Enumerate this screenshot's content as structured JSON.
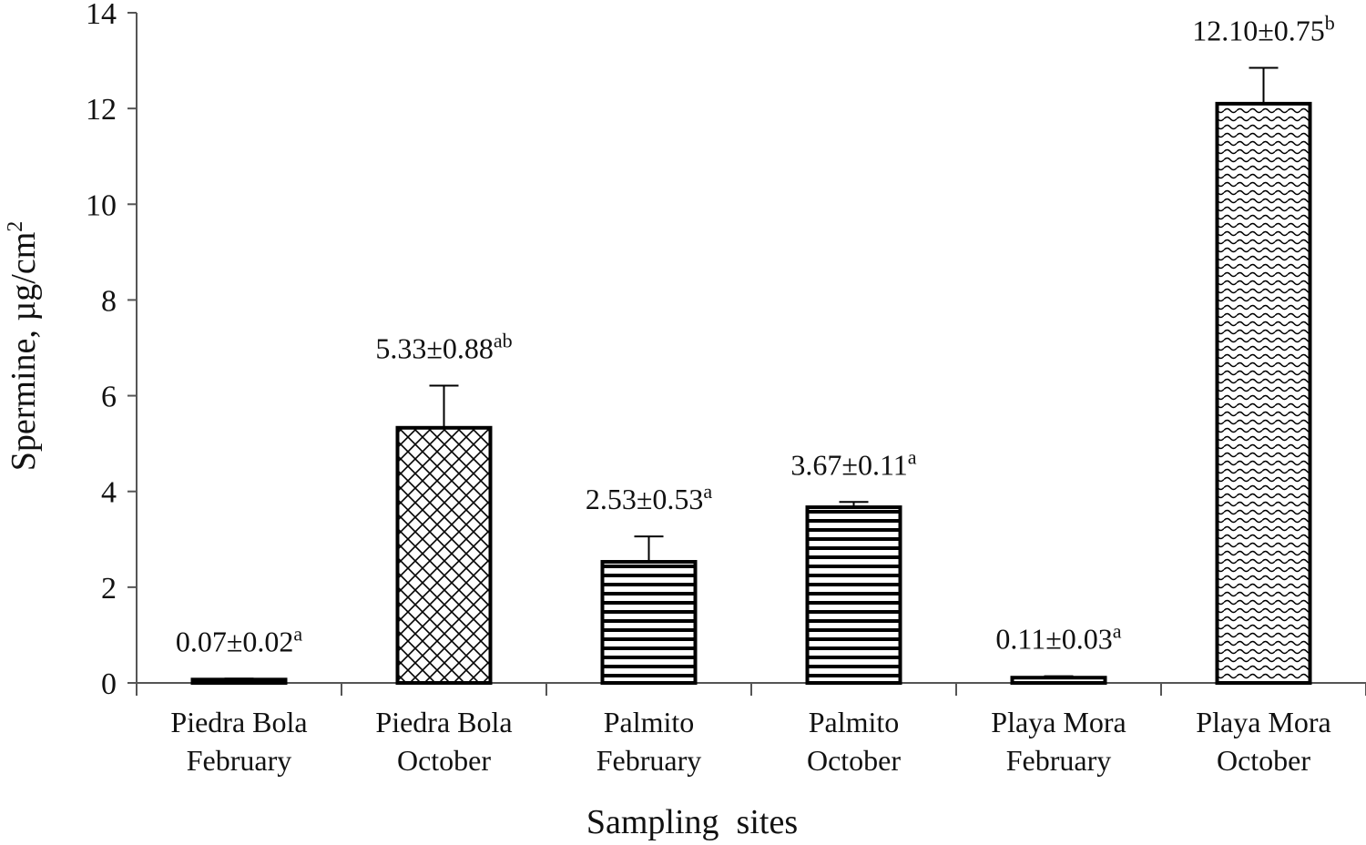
{
  "chart_data": {
    "type": "bar",
    "xlabel": "Sampling  sites",
    "ylabel": "Spermine, µg/cm",
    "ylabel_superscript": "2",
    "ylim": [
      0,
      14
    ],
    "yticks": [
      "0",
      "2",
      "4",
      "6",
      "8",
      "10",
      "12",
      "14"
    ],
    "grid": false,
    "legend": "none",
    "categories": [
      {
        "line1": "Piedra Bola",
        "line2": "February"
      },
      {
        "line1": "Piedra Bola",
        "line2": "October"
      },
      {
        "line1": "Palmito",
        "line2": "February"
      },
      {
        "line1": "Palmito",
        "line2": "October"
      },
      {
        "line1": "Playa Mora",
        "line2": "February"
      },
      {
        "line1": "Playa Mora",
        "line2": "October"
      }
    ],
    "values": [
      0.07,
      5.33,
      2.53,
      3.67,
      0.11,
      12.1
    ],
    "errors": [
      0.02,
      0.88,
      0.53,
      0.11,
      0.03,
      0.75
    ],
    "patterns": [
      "horizontal",
      "crosshatch",
      "horizontal",
      "horizontal",
      "horizontal",
      "wave"
    ],
    "labels": [
      {
        "text": "0.07±0.02",
        "sup": "a"
      },
      {
        "text": "5.33±0.88",
        "sup": "ab"
      },
      {
        "text": "2.53±0.53",
        "sup": "a"
      },
      {
        "text": "3.67±0.11",
        "sup": "a"
      },
      {
        "text": "0.11±0.03",
        "sup": "a"
      },
      {
        "text": "12.10±0.75",
        "sup": "b"
      }
    ],
    "colors": {
      "bar_stroke": "#000000",
      "bar_fill": "#ffffff",
      "axis": "#555555",
      "text": "#111111"
    }
  }
}
